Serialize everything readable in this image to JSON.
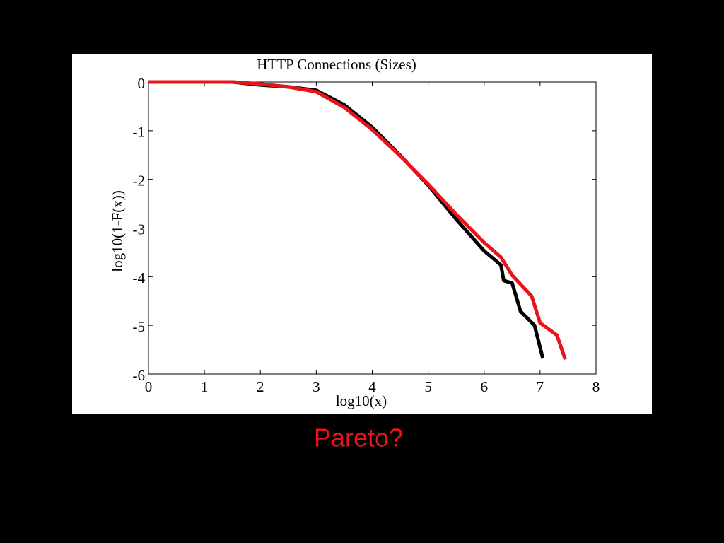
{
  "chart_data": {
    "type": "line",
    "title": "HTTP Connections (Sizes)",
    "x_label": "log10(x)",
    "y_label": "log10(1-F(x))",
    "annotation": "Pareto?",
    "xlim": [
      0,
      8
    ],
    "ylim": [
      -6,
      0
    ],
    "xticks": [
      0,
      1,
      2,
      3,
      4,
      5,
      6,
      7,
      8
    ],
    "yticks": [
      0,
      -1,
      -2,
      -3,
      -4,
      -5,
      -6
    ],
    "series": [
      {
        "color": "#000000",
        "x": [
          0,
          1,
          1.5,
          2,
          2.5,
          3,
          3.5,
          4,
          4.5,
          5,
          5.5,
          6,
          6.3,
          6.35,
          6.5,
          6.65,
          6.9,
          7.05
        ],
        "values": [
          0,
          0,
          0,
          -0.06,
          -0.1,
          -0.17,
          -0.47,
          -0.93,
          -1.51,
          -2.12,
          -2.82,
          -3.47,
          -3.76,
          -4.08,
          -4.13,
          -4.71,
          -5.0,
          -5.68
        ]
      },
      {
        "color": "#e8141a",
        "x": [
          0,
          1,
          1.5,
          2,
          2.5,
          3,
          3.5,
          4,
          4.5,
          5,
          5.5,
          6,
          6.3,
          6.5,
          6.85,
          7,
          7.3,
          7.45
        ],
        "values": [
          0,
          0,
          0,
          -0.04,
          -0.1,
          -0.2,
          -0.52,
          -0.98,
          -1.52,
          -2.1,
          -2.72,
          -3.3,
          -3.6,
          -3.97,
          -4.4,
          -4.95,
          -5.2,
          -5.7
        ]
      }
    ]
  }
}
